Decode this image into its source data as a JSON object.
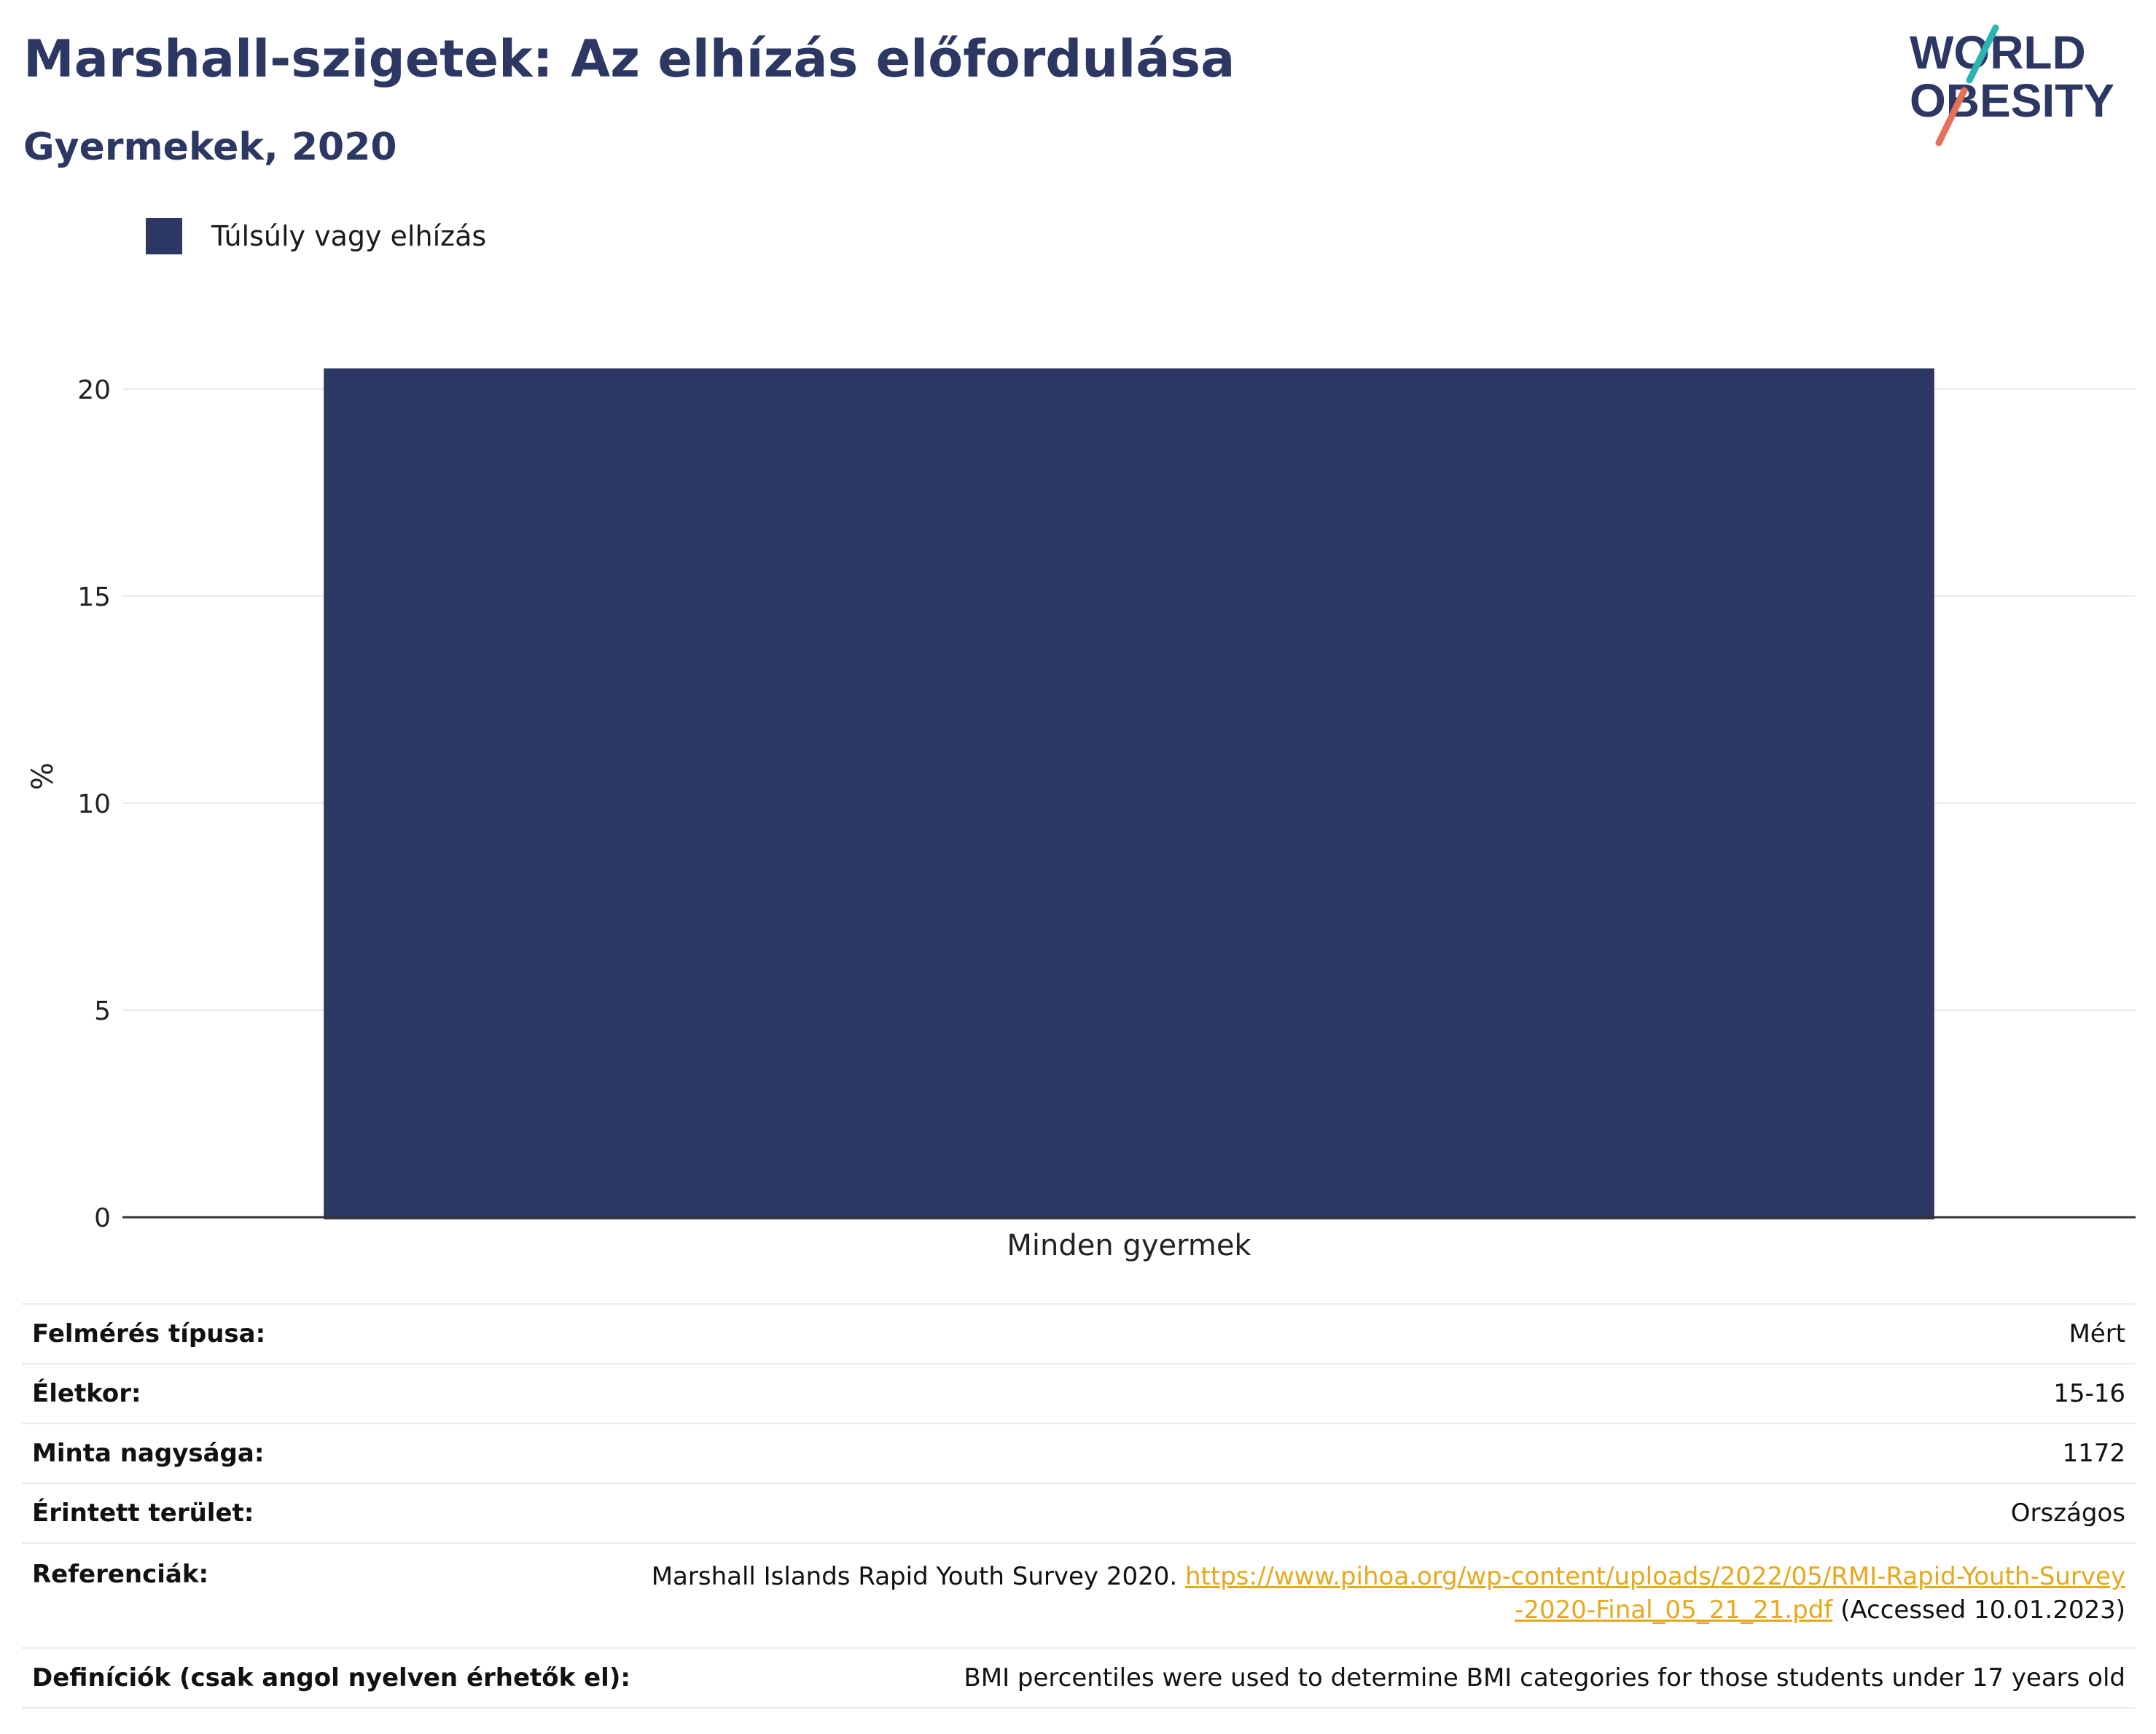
{
  "title": "Marshall-szigetek: Az elhízás előfordulása",
  "subtitle": "Gyermekek, 2020",
  "logo": {
    "line1": "WORLD",
    "line2": "OBESITY"
  },
  "legend": {
    "label": "Túlsúly vagy elhízás",
    "color": "#2c3863"
  },
  "chart_data": {
    "type": "bar",
    "categories": [
      "Minden gyermek"
    ],
    "series": [
      {
        "name": "Túlsúly vagy elhízás",
        "values": [
          20.5
        ],
        "color": "#2c3863"
      }
    ],
    "ylabel": "%",
    "xlabel": "",
    "ylim": [
      0,
      21.3
    ],
    "yticks": [
      0,
      5,
      10,
      15,
      20
    ],
    "grid": true,
    "legend_position": "top-left"
  },
  "meta": {
    "survey_type_label": "Felmérés típusa:",
    "survey_type_value": "Mért",
    "age_label": "Életkor:",
    "age_value": "15-16",
    "sample_label": "Minta nagysága:",
    "sample_value": "1172",
    "area_label": "Érintett terület:",
    "area_value": "Országos",
    "ref_label": "Referenciák:",
    "ref_text": "Marshall Islands Rapid Youth Survey 2020.",
    "ref_url": "https://www.pihoa.org/wp-content/uploads/2022/05/RMI-Rapid-Youth-Survey-2020-Final_05_21_21.pdf",
    "ref_accessed": "(Accessed 10.01.2023)",
    "def_label": "Definíciók (csak angol nyelven érhetők el):",
    "def_value": "BMI percentiles were used to determine BMI categories for those students under 17 years old"
  },
  "colors": {
    "navy": "#2c3863",
    "teal": "#2bb5b0",
    "coral": "#e5705a",
    "link": "#e6a81c"
  }
}
